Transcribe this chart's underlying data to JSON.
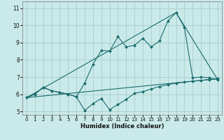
{
  "xlabel": "Humidex (Indice chaleur)",
  "ylabel": "",
  "background_color": "#caeaea",
  "grid_color": "#aacccc",
  "line_color": "#1a6b6b",
  "xlim": [
    -0.5,
    23.5
  ],
  "ylim": [
    4.8,
    11.4
  ],
  "xticks": [
    0,
    1,
    2,
    3,
    4,
    5,
    6,
    7,
    8,
    9,
    10,
    11,
    12,
    13,
    14,
    15,
    16,
    17,
    18,
    19,
    20,
    21,
    22,
    23
  ],
  "yticks": [
    5,
    6,
    7,
    8,
    9,
    10,
    11
  ],
  "series": [
    {
      "x": [
        0,
        1,
        2,
        3,
        4,
        5,
        6,
        7,
        8,
        9,
        10,
        11,
        12,
        13,
        14,
        15,
        16,
        17,
        18,
        19,
        20,
        21,
        22,
        23
      ],
      "y": [
        5.8,
        6.0,
        6.4,
        6.2,
        6.1,
        6.0,
        5.85,
        5.05,
        5.45,
        5.75,
        5.1,
        5.4,
        5.7,
        6.05,
        6.15,
        6.3,
        6.45,
        6.55,
        6.65,
        6.7,
        6.75,
        6.8,
        6.85,
        6.9
      ],
      "marker": "D",
      "markersize": 2.0,
      "linewidth": 0.8
    },
    {
      "x": [
        0,
        1,
        2,
        3,
        4,
        5,
        6,
        7,
        8,
        9,
        10,
        11,
        12,
        13,
        14,
        15,
        16,
        17,
        18,
        19,
        20,
        21,
        22,
        23
      ],
      "y": [
        5.8,
        6.0,
        6.4,
        6.2,
        6.1,
        6.0,
        5.85,
        6.65,
        7.75,
        8.55,
        8.5,
        9.35,
        8.75,
        8.85,
        9.25,
        8.75,
        9.1,
        10.25,
        10.75,
        9.9,
        6.95,
        7.0,
        6.95,
        6.85
      ],
      "marker": "D",
      "markersize": 2.0,
      "linewidth": 0.8
    },
    {
      "x": [
        0,
        18,
        23
      ],
      "y": [
        5.8,
        10.75,
        6.85
      ],
      "marker": null,
      "markersize": 0,
      "linewidth": 0.8
    },
    {
      "x": [
        0,
        23
      ],
      "y": [
        5.8,
        6.9
      ],
      "marker": null,
      "markersize": 0,
      "linewidth": 0.8
    }
  ]
}
